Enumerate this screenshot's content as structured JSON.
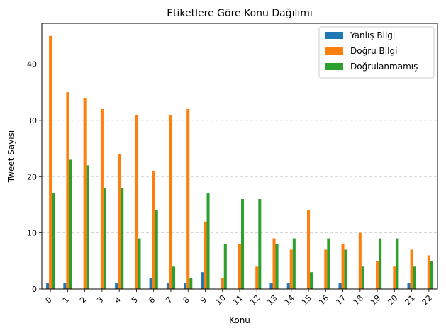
{
  "chart_data": {
    "type": "bar",
    "title": "Etiketlere Göre Konu Dağılımı",
    "xlabel": "Konu",
    "ylabel": "Tweet Sayısı",
    "categories": [
      "0",
      "1",
      "2",
      "3",
      "4",
      "5",
      "6",
      "7",
      "8",
      "9",
      "10",
      "11",
      "12",
      "13",
      "14",
      "15",
      "16",
      "17",
      "18",
      "19",
      "20",
      "21",
      "22"
    ],
    "ylim": [
      0,
      47.25
    ],
    "yticks": [
      0,
      10,
      20,
      30,
      40
    ],
    "grid": "y-dashed",
    "legend_position": "top-right",
    "series": [
      {
        "name": "Yanlış Bilgi",
        "color": "#1f77b4",
        "values": [
          1,
          1,
          0,
          0,
          1,
          0,
          2,
          1,
          1,
          3,
          0,
          0,
          0,
          1,
          1,
          0,
          0,
          1,
          0,
          0,
          0,
          1,
          0
        ]
      },
      {
        "name": "Doğru Bilgi",
        "color": "#ff7f0e",
        "values": [
          45,
          35,
          34,
          32,
          24,
          31,
          21,
          31,
          32,
          12,
          2,
          8,
          4,
          9,
          7,
          14,
          7,
          8,
          10,
          5,
          4,
          7,
          6
        ]
      },
      {
        "name": "Doğrulanmamış",
        "color": "#2ca02c",
        "values": [
          17,
          23,
          22,
          18,
          18,
          9,
          14,
          4,
          2,
          17,
          8,
          16,
          16,
          8,
          9,
          3,
          9,
          7,
          4,
          9,
          9,
          4,
          5
        ]
      }
    ]
  }
}
